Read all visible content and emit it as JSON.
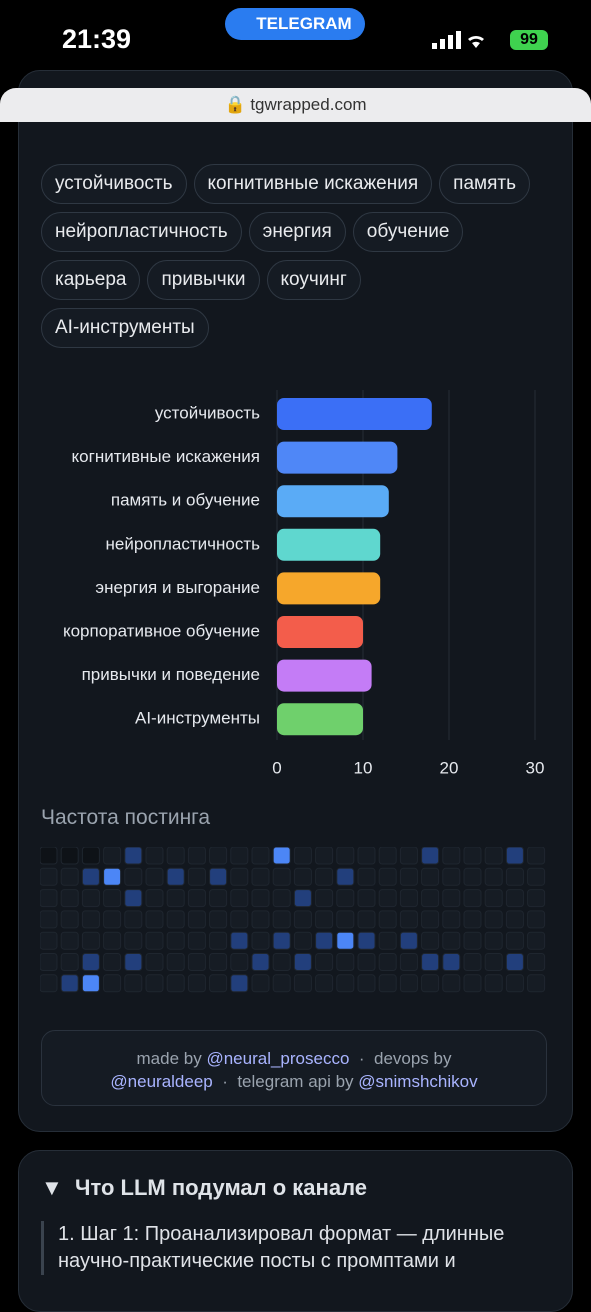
{
  "status_bar": {
    "time": "21:39",
    "app": "TELEGRAM",
    "battery": "99"
  },
  "url": "tgwrapped.com",
  "tags": [
    "устойчивость",
    "когнитивные искажения",
    "память",
    "нейропластичность",
    "энергия",
    "обучение",
    "карьера",
    "привычки",
    "коучинг",
    "AI-инструменты"
  ],
  "chart_data": {
    "type": "hbar",
    "categories": [
      "устойчивость",
      "когнитивные искажения",
      "память и обучение",
      "нейропластичность",
      "энергия и выгорание",
      "корпоративное обучение",
      "привычки и поведение",
      "AI-инструменты"
    ],
    "values": [
      18,
      14,
      13,
      12,
      12,
      10,
      11,
      10
    ],
    "colors": [
      "#3b6ff6",
      "#4f87f7",
      "#5aabf6",
      "#5fd7cf",
      "#f6a72b",
      "#f35d4b",
      "#c47cf6",
      "#6fd06c"
    ],
    "xlim": [
      0,
      30
    ],
    "xticks": [
      0,
      10,
      20,
      30
    ],
    "grid": true
  },
  "heatmap": {
    "title": "Частота постинга",
    "levels": [
      [
        null,
        null,
        null,
        0,
        1,
        0,
        0,
        0,
        0,
        0,
        0,
        3,
        0,
        0,
        0,
        0,
        0,
        0,
        1,
        0,
        0,
        0,
        1,
        0
      ],
      [
        0,
        0,
        1,
        3,
        0,
        0,
        1,
        0,
        1,
        0,
        0,
        0,
        0,
        0,
        1,
        0,
        0,
        0,
        0,
        0,
        0,
        0,
        0,
        0
      ],
      [
        0,
        0,
        0,
        0,
        1,
        0,
        0,
        0,
        0,
        0,
        0,
        0,
        1,
        0,
        0,
        0,
        0,
        0,
        0,
        0,
        0,
        0,
        0,
        0
      ],
      [
        0,
        0,
        0,
        0,
        0,
        0,
        0,
        0,
        0,
        0,
        0,
        0,
        0,
        0,
        0,
        0,
        0,
        0,
        0,
        0,
        0,
        0,
        0,
        0
      ],
      [
        0,
        0,
        0,
        0,
        0,
        0,
        0,
        0,
        0,
        1,
        0,
        1,
        0,
        1,
        3,
        1,
        0,
        1,
        0,
        0,
        0,
        0,
        0,
        0
      ],
      [
        0,
        0,
        1,
        0,
        1,
        0,
        0,
        0,
        0,
        0,
        1,
        0,
        1,
        0,
        0,
        0,
        0,
        0,
        1,
        1,
        0,
        0,
        1,
        0
      ],
      [
        0,
        1,
        3,
        0,
        0,
        0,
        0,
        0,
        0,
        1,
        0,
        0,
        0,
        0,
        0,
        0,
        0,
        0,
        0,
        0,
        0,
        0,
        0,
        0
      ]
    ]
  },
  "footer": {
    "made_by": "made by",
    "author": "@neural_prosecco",
    "sep1": "·",
    "devops_by": "devops by",
    "devops": "@neuraldeep",
    "sep2": "·",
    "api_by": "telegram api by",
    "api": "@snimshchikov"
  },
  "section": {
    "marker": "▼",
    "title": "Что LLM подумал о канале",
    "item": "1. Шаг 1: Проанализировал формат — длинные научно-практические посты с промптами и"
  }
}
